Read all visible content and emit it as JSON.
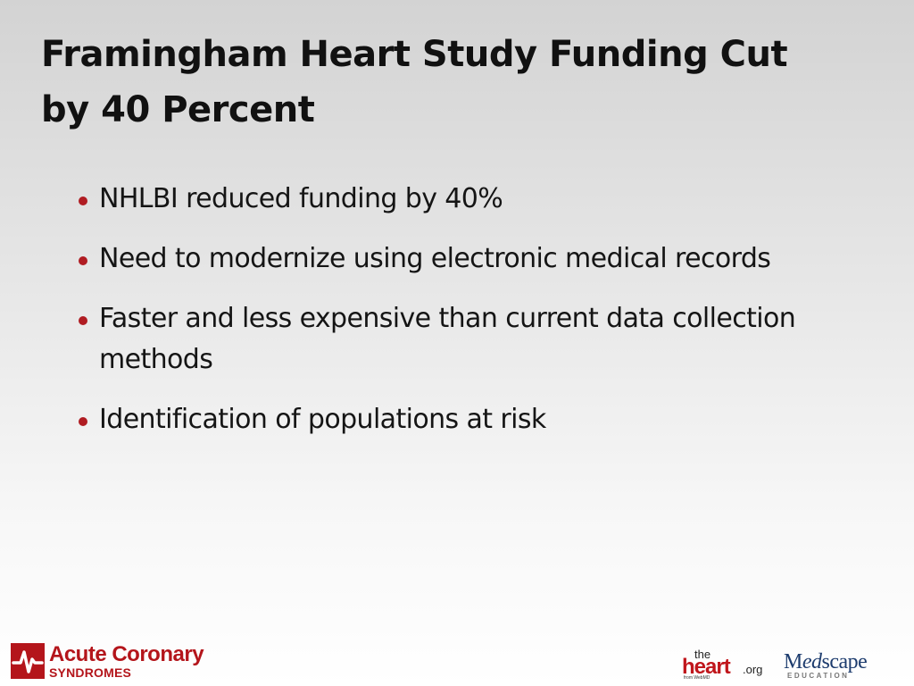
{
  "slide": {
    "title": "Framingham Heart Study Funding Cut by 40 Percent",
    "bullets": [
      "NHLBI reduced funding by 40%",
      "Need to modernize using electronic medical records",
      "Faster and less expensive than current data collection methods",
      "Identification of populations at risk"
    ],
    "bullet_color": "#b01c22"
  },
  "footer": {
    "acs_logo": {
      "line1": "Acute Coronary",
      "line2": "SYNDROMES",
      "color": "#b4151b"
    },
    "heart_logo": {
      "the": "the",
      "heart": "heart",
      "org": ".org",
      "from": "from WebMD"
    },
    "medscape_logo": {
      "med_m": "M",
      "med_ed": "ed",
      "scape": "scape",
      "education": "EDUCATION"
    }
  }
}
